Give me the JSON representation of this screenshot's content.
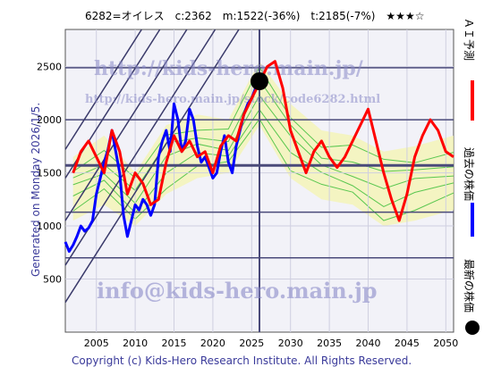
{
  "chart_data": {
    "type": "line",
    "title": "6282=オイレス　c:2362　m:1522(-36%)　t:2185(-7%)　★★★☆",
    "ylabel": "Generated on Monday 2026/1/5.",
    "xlim": [
      2001,
      2051
    ],
    "ylim": [
      0,
      2850
    ],
    "x_ticks": [
      2005,
      2010,
      2015,
      2020,
      2025,
      2030,
      2035,
      2040,
      2045,
      2050
    ],
    "y_ticks": [
      500,
      1000,
      1500,
      2000,
      2500
    ],
    "grid": true,
    "reference_lines": [
      700,
      1130,
      1570,
      2000,
      2490
    ],
    "trend_channel_lines": [
      {
        "start": [
          2001,
          280
        ],
        "slope_per_year": 115
      },
      {
        "start": [
          2001,
          630
        ],
        "slope_per_year": 115
      },
      {
        "start": [
          2001,
          1050
        ],
        "slope_per_year": 115
      },
      {
        "start": [
          2001,
          1450
        ],
        "slope_per_year": 115
      },
      {
        "start": [
          2001,
          1720
        ],
        "slope_per_year": 115
      }
    ],
    "current_marker": {
      "x": 2026,
      "y": 2362
    },
    "current_year_line": 2026,
    "series": [
      {
        "name": "過去の株価",
        "color": "#0000ff",
        "x": [
          2001,
          2001.5,
          2002,
          2002.5,
          2003,
          2003.5,
          2004,
          2004.5,
          2005,
          2005.5,
          2006,
          2006.5,
          2007,
          2007.5,
          2008,
          2008.5,
          2009,
          2009.5,
          2010,
          2010.5,
          2011,
          2011.5,
          2012,
          2012.5,
          2013,
          2013.5,
          2014,
          2014.5,
          2015,
          2015.5,
          2016,
          2016.5,
          2017,
          2017.5,
          2018,
          2018.5,
          2019,
          2019.5,
          2020,
          2020.5,
          2021,
          2021.5,
          2022,
          2022.5,
          2023,
          2023.5,
          2024,
          2024.5,
          2025,
          2025.5,
          2026
        ],
        "values": [
          850,
          760,
          820,
          900,
          1000,
          950,
          980,
          1050,
          1300,
          1450,
          1600,
          1720,
          1900,
          1700,
          1500,
          1100,
          900,
          1050,
          1200,
          1150,
          1250,
          1200,
          1100,
          1200,
          1650,
          1800,
          1900,
          1700,
          2150,
          2000,
          1700,
          1800,
          2100,
          2000,
          1750,
          1600,
          1650,
          1550,
          1450,
          1500,
          1700,
          1850,
          1600,
          1500,
          1750,
          1900,
          2050,
          2150,
          2200,
          2300,
          2362
        ]
      },
      {
        "name": "ＡＩ予測",
        "color": "#ff0000",
        "x": [
          2002,
          2003,
          2004,
          2005,
          2006,
          2007,
          2008,
          2009,
          2010,
          2011,
          2012,
          2013,
          2014,
          2015,
          2016,
          2017,
          2018,
          2019,
          2020,
          2021,
          2022,
          2023,
          2024,
          2025,
          2026,
          2027,
          2028,
          2029,
          2030,
          2031,
          2032,
          2033,
          2034,
          2035,
          2036,
          2037,
          2038,
          2039,
          2040,
          2041,
          2042,
          2043,
          2044,
          2045,
          2046,
          2047,
          2048,
          2049,
          2050,
          2051
        ],
        "values": [
          1500,
          1700,
          1800,
          1650,
          1500,
          1900,
          1700,
          1300,
          1500,
          1400,
          1200,
          1250,
          1600,
          1850,
          1700,
          1800,
          1650,
          1700,
          1500,
          1750,
          1850,
          1800,
          2050,
          2200,
          2350,
          2500,
          2550,
          2300,
          1900,
          1700,
          1500,
          1700,
          1800,
          1650,
          1550,
          1650,
          1800,
          1950,
          2100,
          1800,
          1500,
          1250,
          1050,
          1300,
          1650,
          1850,
          2000,
          1900,
          1700,
          1650
        ]
      },
      {
        "name": "最新の株価",
        "color": "#000000",
        "x": [
          2026
        ],
        "values": [
          2362
        ]
      }
    ],
    "band": {
      "name": "過去の類似パターン",
      "x": [
        2002,
        2006,
        2010,
        2014,
        2018,
        2022,
        2026,
        2030,
        2034,
        2038,
        2042,
        2046,
        2051
      ],
      "lower": [
        1050,
        1200,
        1000,
        1300,
        1450,
        1500,
        1950,
        1450,
        1250,
        1200,
        1000,
        1050,
        1150
      ],
      "upper": [
        1650,
        1850,
        1500,
        1950,
        2050,
        2000,
        2550,
        2150,
        1900,
        1850,
        1700,
        1750,
        1850
      ]
    }
  },
  "legend": {
    "ai": "ＡＩ予測",
    "past": "過去の株価",
    "latest": "最新の株価"
  },
  "watermarks": {
    "url1": "http://kids-hero.main.jp/",
    "url2": "http://kids-hero.main.jp/stock/code6282.html",
    "mail": "info@kids-hero.main.jp"
  },
  "copyright": "Copyright (c) Kids-Hero Research Institute. All Rights Reserved."
}
